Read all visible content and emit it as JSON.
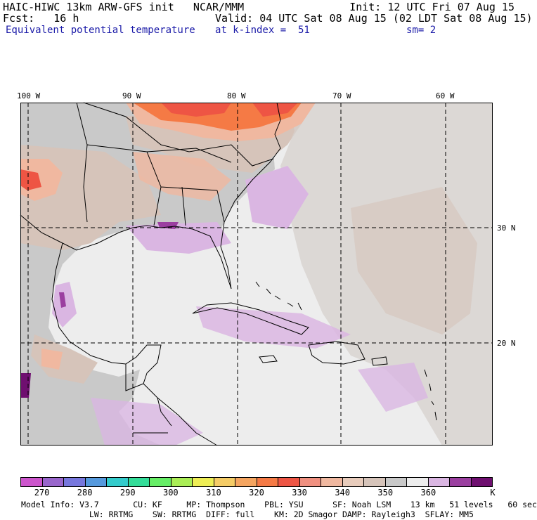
{
  "header": {
    "model_line": "HAIC-HIWC 13km ARW-GFS init   NCAR/MMM",
    "init_line": "Init: 12 UTC Fri 07 Aug 15",
    "fcst_line": "Fcst:   16 h",
    "valid_line": "Valid: 04 UTC Sat 08 Aug 15 (02 LDT Sat 08 Aug 15)",
    "field_name": "Equivalent potential temperature",
    "level_line": "at k-index =  51",
    "smooth_line": "sm= 2"
  },
  "map": {
    "lon_labels": [
      "100 W",
      "90 W",
      "80 W",
      "70 W",
      "60 W"
    ],
    "lat_labels": [
      "30 N",
      "20 N"
    ]
  },
  "colorbar": {
    "colors": [
      "#cc55cc",
      "#9966cc",
      "#7777dd",
      "#5599dd",
      "#33cccc",
      "#33dd99",
      "#66ee66",
      "#aaee55",
      "#eeee55",
      "#f5cc66",
      "#f5a560",
      "#f57a45",
      "#ee5544",
      "#f09080",
      "#f0b8a0",
      "#e8ccbc",
      "#d6c4ba",
      "#c9c9c9",
      "#ededed",
      "#dab6e2",
      "#9b3fa0",
      "#6f0f70"
    ],
    "labels": [
      "270",
      "280",
      "290",
      "300",
      "310",
      "320",
      "330",
      "340",
      "350",
      "360",
      "K"
    ]
  },
  "footer": {
    "line1": "Model Info: V3.7       CU: KF     MP: Thompson    PBL: YSU      SF: Noah LSM    13 km   51 levels   60 sec",
    "line2": "              LW: RRTMG    SW: RRTMG  DIFF: full    KM: 2D Smagor DAMP: Rayleigh3  SFLAY: MM5"
  }
}
